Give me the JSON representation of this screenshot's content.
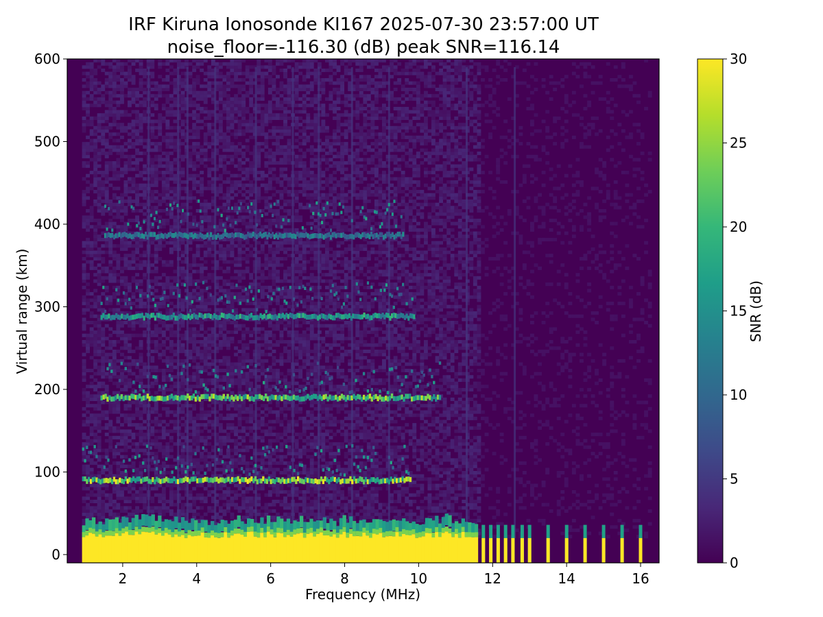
{
  "chart_data": {
    "type": "heatmap",
    "title": "IRF Kiruna Ionosonde KI167 2025-07-30 23:57:00  UT",
    "subtitle": "noise_floor=-116.30 (dB) peak SNR=116.14",
    "xlabel": "Frequency (MHz)",
    "ylabel": "Virtual range (km)",
    "xlim": [
      0.5,
      16.5
    ],
    "ylim": [
      -10,
      600
    ],
    "xticks": [
      2,
      4,
      6,
      8,
      10,
      12,
      14,
      16
    ],
    "yticks": [
      0,
      100,
      200,
      300,
      400,
      500,
      600
    ],
    "grid": false,
    "colorbar": {
      "label": "SNR (dB)",
      "range": [
        0,
        30
      ],
      "ticks": [
        0,
        5,
        10,
        15,
        20,
        25,
        30
      ],
      "colormap": "viridis",
      "colors": [
        "#440154",
        "#482878",
        "#3e4a89",
        "#31688e",
        "#26828e",
        "#1f9e89",
        "#35b779",
        "#6ece58",
        "#b5de2b",
        "#fde725"
      ]
    },
    "traces": [
      {
        "range_km": 90,
        "freq_start": 0.9,
        "freq_end": 9.8,
        "snr": 26
      },
      {
        "range_km": 190,
        "freq_start": 1.4,
        "freq_end": 10.6,
        "snr": 24
      },
      {
        "range_km": 288,
        "freq_start": 1.4,
        "freq_end": 9.9,
        "snr": 18
      },
      {
        "range_km": 386,
        "freq_start": 1.5,
        "freq_end": 9.6,
        "snr": 13
      }
    ],
    "ground_clutter": {
      "freq_start": 0.9,
      "freq_end": 11.6,
      "range_top_km": 20,
      "snr": 30
    },
    "pulses_freq": [
      11.75,
      11.95,
      12.15,
      12.35,
      12.55,
      12.8,
      13.0,
      13.5,
      14.0,
      14.5,
      15.0,
      15.5,
      16.0
    ]
  }
}
